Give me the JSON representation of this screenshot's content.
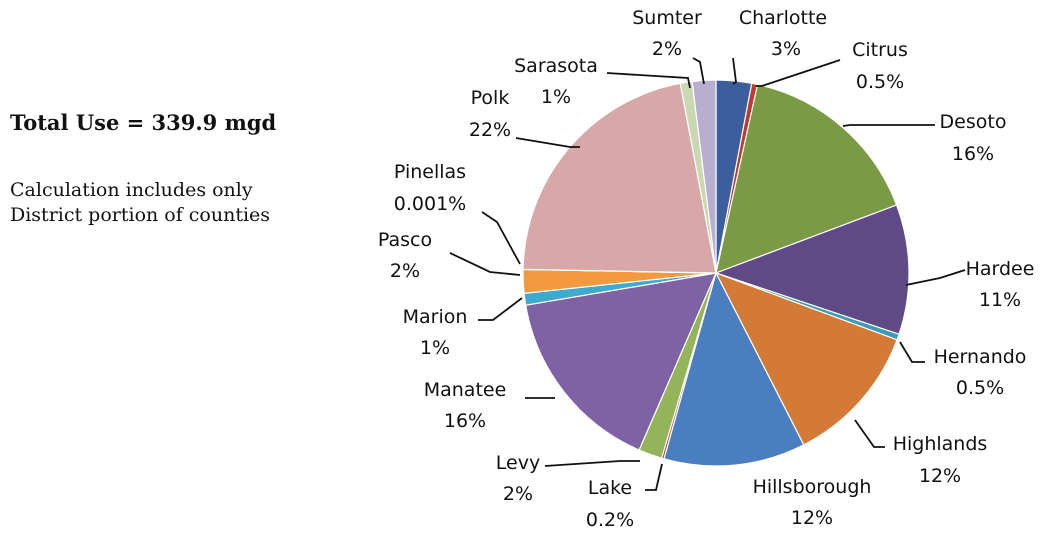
{
  "notes": {
    "total": "Total Use = 339.9 mgd",
    "calc_line1": "Calculation includes only",
    "calc_line2": "District portion of counties"
  },
  "chart_data": {
    "type": "pie",
    "title": "",
    "start_angle_deg": 0,
    "direction": "clockwise",
    "slices": [
      {
        "name": "Charlotte",
        "label": "3%",
        "value": 3,
        "color": "#3b5f9c"
      },
      {
        "name": "Citrus",
        "label": "0.5%",
        "value": 0.5,
        "color": "#c0392b"
      },
      {
        "name": "Desoto",
        "label": "16%",
        "value": 16,
        "color": "#7a9a45"
      },
      {
        "name": "Hardee",
        "label": "11%",
        "value": 11,
        "color": "#5f4a87"
      },
      {
        "name": "Hernando",
        "label": "0.5%",
        "value": 0.5,
        "color": "#3c9bb6"
      },
      {
        "name": "Highlands",
        "label": "12%",
        "value": 12,
        "color": "#d27a36"
      },
      {
        "name": "Hillsborough",
        "label": "12%",
        "value": 12,
        "color": "#4a7ec0"
      },
      {
        "name": "Lake",
        "label": "0.2%",
        "value": 0.2,
        "color": "#b04040"
      },
      {
        "name": "Levy",
        "label": "2%",
        "value": 2,
        "color": "#93b458"
      },
      {
        "name": "Manatee",
        "label": "16%",
        "value": 16,
        "color": "#7f62a6"
      },
      {
        "name": "Marion",
        "label": "1%",
        "value": 1,
        "color": "#3eaad0"
      },
      {
        "name": "Pasco",
        "label": "2%",
        "value": 2,
        "color": "#f39a40"
      },
      {
        "name": "Pinellas",
        "label": "0.001%",
        "value": 0.001,
        "color": "#9db3d6"
      },
      {
        "name": "Polk",
        "label": "22%",
        "value": 22,
        "color": "#d8a8a8"
      },
      {
        "name": "Sarasota",
        "label": "1%",
        "value": 1,
        "color": "#c9d8b0"
      },
      {
        "name": "Sumter",
        "label": "2%",
        "value": 2,
        "color": "#b8aed0"
      }
    ]
  }
}
